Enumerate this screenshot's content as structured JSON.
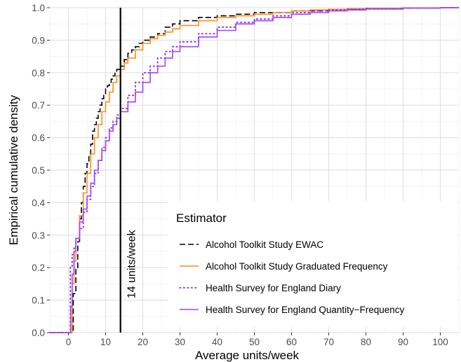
{
  "chart_data": {
    "type": "line",
    "title": "",
    "xlabel": "Average units/week",
    "ylabel": "Empirical cumulative density",
    "xlim": [
      -5,
      105
    ],
    "ylim": [
      0,
      1
    ],
    "x_ticks": [
      "0",
      "10",
      "20",
      "30",
      "40",
      "50",
      "60",
      "70",
      "80",
      "90",
      "100"
    ],
    "y_ticks": [
      "0.0",
      "0.1",
      "0.2",
      "0.3",
      "0.4",
      "0.5",
      "0.6",
      "0.7",
      "0.8",
      "0.9",
      "1.0"
    ],
    "grid": true,
    "legend_title": "Estimator",
    "legend_position": "bottom-right",
    "reference_line": {
      "x": 14,
      "label": "14 units/week",
      "color": "#000000"
    },
    "series": [
      {
        "name": "Alcohol Toolkit Study EWAC",
        "color": "#000000",
        "style": "dashed",
        "x": [
          -5,
          1,
          1.3,
          2,
          2.5,
          3,
          3.5,
          4,
          4.5,
          5,
          5.5,
          6,
          6.5,
          7,
          7.5,
          8,
          8.5,
          9,
          9.5,
          10,
          10.5,
          11,
          11.5,
          12,
          12.5,
          13,
          13.5,
          14,
          15,
          16,
          17,
          18,
          19,
          20,
          21,
          22,
          24,
          26,
          28,
          30,
          35,
          40,
          45,
          50,
          60,
          70,
          80,
          90,
          100,
          105
        ],
        "y": [
          0,
          0,
          0.12,
          0.2,
          0.28,
          0.35,
          0.4,
          0.45,
          0.49,
          0.52,
          0.55,
          0.58,
          0.62,
          0.64,
          0.66,
          0.68,
          0.7,
          0.72,
          0.73,
          0.75,
          0.76,
          0.77,
          0.78,
          0.79,
          0.8,
          0.81,
          0.81,
          0.82,
          0.84,
          0.86,
          0.87,
          0.88,
          0.89,
          0.9,
          0.9,
          0.91,
          0.92,
          0.94,
          0.95,
          0.96,
          0.97,
          0.975,
          0.98,
          0.985,
          0.99,
          0.995,
          0.998,
          0.999,
          1.0,
          1.0
        ]
      },
      {
        "name": "Alcohol Toolkit Study Graduated Frequency",
        "color": "#ff8c1a",
        "style": "solid",
        "x": [
          -5,
          0.8,
          1,
          1.5,
          2,
          3,
          4,
          5,
          6,
          7,
          8,
          9,
          10,
          11,
          12,
          13,
          14,
          15,
          16,
          18,
          20,
          22,
          24,
          26,
          28,
          30,
          35,
          40,
          45,
          50,
          55,
          60,
          65,
          70,
          75,
          80,
          90,
          100,
          105
        ],
        "y": [
          0,
          0,
          0.15,
          0.22,
          0.29,
          0.36,
          0.43,
          0.49,
          0.55,
          0.6,
          0.64,
          0.68,
          0.71,
          0.74,
          0.77,
          0.79,
          0.81,
          0.83,
          0.845,
          0.87,
          0.89,
          0.905,
          0.915,
          0.925,
          0.935,
          0.945,
          0.96,
          0.97,
          0.975,
          0.98,
          0.985,
          0.99,
          0.993,
          0.995,
          0.997,
          0.998,
          0.999,
          1.0,
          1.0
        ]
      },
      {
        "name": "Health Survey for England Diary",
        "color": "#8a2be2",
        "style": "dotted",
        "x": [
          -5,
          0.3,
          0.5,
          1,
          1.5,
          2,
          3,
          4,
          5,
          6,
          7,
          8,
          9,
          10,
          11,
          12,
          13,
          14,
          16,
          18,
          20,
          22,
          24,
          26,
          28,
          30,
          35,
          40,
          45,
          50,
          55,
          60,
          65,
          70,
          75,
          80,
          90,
          100,
          105
        ],
        "y": [
          0,
          0,
          0.2,
          0.24,
          0.26,
          0.28,
          0.32,
          0.37,
          0.41,
          0.45,
          0.49,
          0.53,
          0.57,
          0.6,
          0.63,
          0.65,
          0.67,
          0.69,
          0.73,
          0.77,
          0.8,
          0.82,
          0.845,
          0.865,
          0.88,
          0.895,
          0.92,
          0.94,
          0.955,
          0.965,
          0.975,
          0.985,
          0.99,
          0.993,
          0.995,
          0.997,
          0.999,
          1.0,
          1.0
        ]
      },
      {
        "name": "Health Survey for England Quantity−Frequency",
        "color": "#a040ff",
        "style": "solid",
        "x": [
          -5,
          0.4,
          0.6,
          1,
          1.5,
          2,
          3,
          4,
          5,
          6,
          7,
          8,
          9,
          10,
          11,
          12,
          13,
          14,
          16,
          18,
          20,
          22,
          24,
          26,
          28,
          30,
          35,
          40,
          45,
          50,
          55,
          60,
          65,
          70,
          75,
          80,
          90,
          100,
          105
        ],
        "y": [
          0,
          0,
          0.08,
          0.18,
          0.25,
          0.29,
          0.34,
          0.38,
          0.42,
          0.46,
          0.5,
          0.53,
          0.56,
          0.59,
          0.62,
          0.64,
          0.66,
          0.68,
          0.71,
          0.74,
          0.77,
          0.8,
          0.82,
          0.845,
          0.865,
          0.88,
          0.91,
          0.93,
          0.95,
          0.96,
          0.97,
          0.98,
          0.985,
          0.99,
          0.993,
          0.996,
          0.999,
          1.0,
          1.0
        ]
      }
    ]
  }
}
